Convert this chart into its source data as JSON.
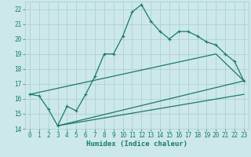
{
  "title": "",
  "xlabel": "Humidex (Indice chaleur)",
  "bg_color": "#cce8e8",
  "grid_color": "#aacccc",
  "line_color": "#1a7a6a",
  "xlim": [
    -0.5,
    23.5
  ],
  "ylim": [
    14,
    22.5
  ],
  "xticks": [
    0,
    1,
    2,
    3,
    4,
    5,
    6,
    7,
    8,
    9,
    10,
    11,
    12,
    13,
    14,
    15,
    16,
    17,
    18,
    19,
    20,
    21,
    22,
    23
  ],
  "yticks": [
    14,
    15,
    16,
    17,
    18,
    19,
    20,
    21,
    22
  ],
  "main_x": [
    0,
    1,
    2,
    3,
    4,
    5,
    6,
    7,
    8,
    9,
    10,
    11,
    12,
    13,
    14,
    15,
    16,
    17,
    18,
    19,
    20,
    21,
    22,
    23
  ],
  "main_y": [
    16.3,
    16.2,
    15.3,
    14.2,
    15.5,
    15.2,
    16.3,
    17.5,
    19.0,
    19.0,
    20.2,
    21.8,
    22.3,
    21.2,
    20.5,
    20.0,
    20.5,
    20.5,
    20.2,
    19.8,
    19.6,
    19.0,
    18.5,
    17.2
  ],
  "upper_line_x": [
    0,
    20,
    23
  ],
  "upper_line_y": [
    16.3,
    19.0,
    17.2
  ],
  "lower_line_x": [
    3,
    23
  ],
  "lower_line_y": [
    14.2,
    17.2
  ],
  "lower2_line_x": [
    3,
    23
  ],
  "lower2_line_y": [
    14.2,
    16.3
  ],
  "marker_style": "+",
  "linewidth": 0.9,
  "fontsize_label": 6.5,
  "fontsize_tick": 5.5
}
